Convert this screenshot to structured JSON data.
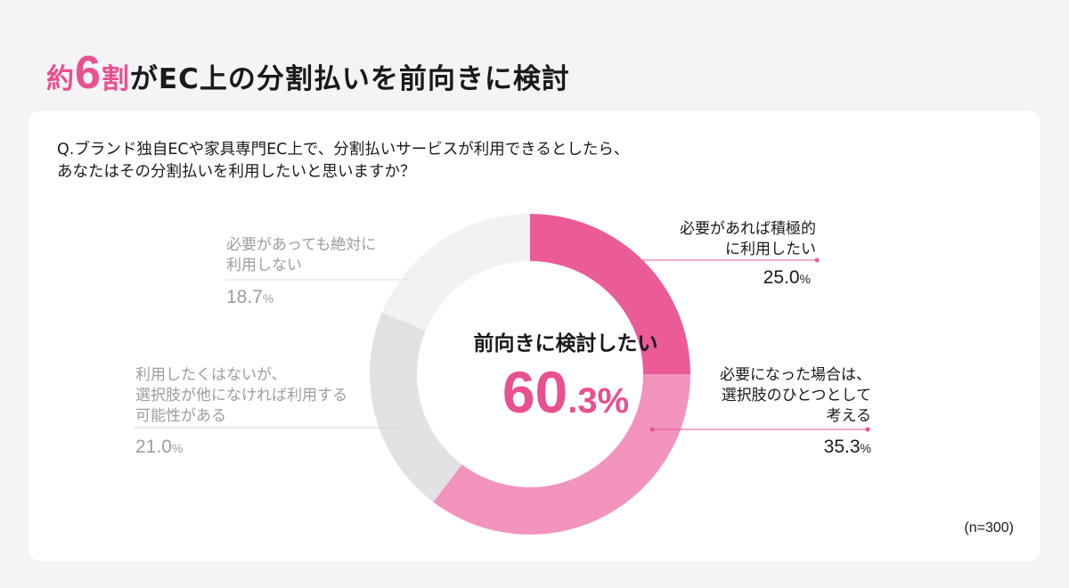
{
  "title": {
    "prefix": "約",
    "number": "6",
    "unit": "割",
    "rest": "がEC上の分割払いを前向きに検討"
  },
  "question": {
    "line1": "Q.ブランド独自ECや家具専門EC上で、分割払いサービスが利用できるとしたら、",
    "line2": "あなたはその分割払いを利用したいと思いますか？"
  },
  "center": {
    "label": "前向きに検討したい",
    "value": "60",
    "decimal": ".3%"
  },
  "sample_note": "(n=300)",
  "chart_data": {
    "type": "pie",
    "title": "",
    "series": [
      {
        "values": [
          25.0,
          35.3,
          21.0,
          18.7
        ]
      }
    ],
    "categories": [
      "必要があれば積極的に利用したい",
      "必要になった場合は、選択肢のひとつとして考える",
      "利用したくはないが、選択肢が他になければ利用する可能性がある",
      "必要があっても絶対に利用しない"
    ],
    "colors": [
      "#ea5b98",
      "#f293be",
      "#e2e1e4",
      "#f3f1f4"
    ],
    "value_labels": [
      "25.0",
      "35.3",
      "21.0",
      "18.7"
    ],
    "unit": "%",
    "slice_labels": [
      {
        "line1": "必要があれば積極的",
        "line2": "に利用したい",
        "line3": ""
      },
      {
        "line1": "必要になった場合は、",
        "line2": "選択肢のひとつとして",
        "line3": "考える"
      },
      {
        "line1": "利用したくはないが、",
        "line2": "選択肢が他になければ利用する",
        "line3": "可能性がある"
      },
      {
        "line1": "必要があっても絶対に",
        "line2": "利用しない",
        "line3": ""
      }
    ],
    "legend": "none",
    "hole": "donut"
  }
}
